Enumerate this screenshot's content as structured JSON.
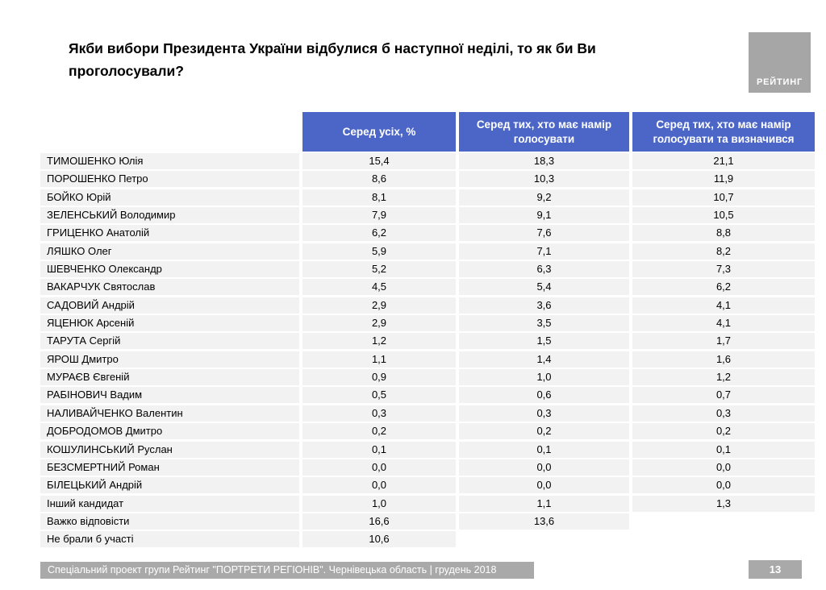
{
  "slide": {
    "title": "Якби вибори Президента України відбулися б наступної неділі, то як би Ви проголосували?"
  },
  "logo": {
    "label": "РЕЙТИНГ"
  },
  "chart_data": {
    "type": "table",
    "title": "Якби вибори Президента України відбулися б наступної неділі, то як би Ви проголосували?",
    "columns": [
      "",
      "Серед усіх, %",
      "Серед тих, хто має намір голосувати",
      "Серед тих, хто має намір голосувати та визначився"
    ],
    "rows": [
      [
        "ТИМОШЕНКО Юлія",
        "15,4",
        "18,3",
        "21,1"
      ],
      [
        "ПОРОШЕНКО Петро",
        "8,6",
        "10,3",
        "11,9"
      ],
      [
        "БОЙКО Юрій",
        "8,1",
        "9,2",
        "10,7"
      ],
      [
        "ЗЕЛЕНСЬКИЙ Володимир",
        "7,9",
        "9,1",
        "10,5"
      ],
      [
        "ГРИЦЕНКО Анатолій",
        "6,2",
        "7,6",
        "8,8"
      ],
      [
        "ЛЯШКО Олег",
        "5,9",
        "7,1",
        "8,2"
      ],
      [
        "ШЕВЧЕНКО Олександр",
        "5,2",
        "6,3",
        "7,3"
      ],
      [
        "ВАКАРЧУК Святослав",
        "4,5",
        "5,4",
        "6,2"
      ],
      [
        "САДОВИЙ Андрій",
        "2,9",
        "3,6",
        "4,1"
      ],
      [
        "ЯЦЕНЮК Арсеній",
        "2,9",
        "3,5",
        "4,1"
      ],
      [
        "ТАРУТА Сергій",
        "1,2",
        "1,5",
        "1,7"
      ],
      [
        "ЯРОШ Дмитро",
        "1,1",
        "1,4",
        "1,6"
      ],
      [
        "МУРАЄВ Євгеній",
        "0,9",
        "1,0",
        "1,2"
      ],
      [
        "РАБІНОВИЧ Вадим",
        "0,5",
        "0,6",
        "0,7"
      ],
      [
        "НАЛИВАЙЧЕНКО Валентин",
        "0,3",
        "0,3",
        "0,3"
      ],
      [
        "ДОБРОДОМОВ Дмитро",
        "0,2",
        "0,2",
        "0,2"
      ],
      [
        "КОШУЛИНСЬКИЙ Руслан",
        "0,1",
        "0,1",
        "0,1"
      ],
      [
        "БЕЗСМЕРТНИЙ Роман",
        "0,0",
        "0,0",
        "0,0"
      ],
      [
        "БІЛЕЦЬКИЙ Андрій",
        "0,0",
        "0,0",
        "0,0"
      ],
      [
        "Інший кандидат",
        "1,0",
        "1,1",
        "1,3"
      ],
      [
        "Важко відповісти",
        "16,6",
        "13,6",
        ""
      ],
      [
        "Не брали б участі",
        "10,6",
        "",
        ""
      ]
    ]
  },
  "footer": {
    "text": "Спеціальний проект групи Рейтинг \"ПОРТРЕТИ РЕГІОНІВ\". Чернівецька область | грудень 2018",
    "page_number": "13"
  },
  "colors": {
    "header_bg": "#4c66c8",
    "row_bg": "#f2f2f2",
    "footer_bg": "#a9a9a9",
    "logo_bg": "#a6a6a6"
  }
}
